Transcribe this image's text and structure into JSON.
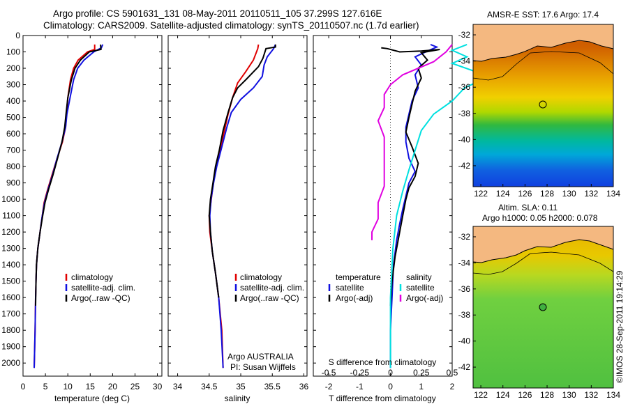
{
  "header": {
    "line1": "Argo profile: CS 5901631_131 08-May-2011 20110511_105 37.299S 127.616E",
    "line2": "Climatology: CARS2009. Satellite-adjusted climatology: synTS_20110507.nc (1.7d earlier)"
  },
  "colors": {
    "red": "#e00000",
    "blue": "#1010e0",
    "black": "#000000",
    "cyan": "#00e0e0",
    "magenta": "#e000e0"
  },
  "chart_data": [
    {
      "type": "line",
      "panel": "temperature",
      "xlabel": "temperature (deg C)",
      "ylabel": "",
      "xlim": [
        0,
        31
      ],
      "ylim": [
        2080,
        0
      ],
      "xticks": [
        "0",
        "5",
        "10",
        "15",
        "20",
        "25",
        "30"
      ],
      "yticks": [
        "0",
        "100",
        "200",
        "300",
        "400",
        "500",
        "600",
        "700",
        "800",
        "900",
        "1000",
        "1100",
        "1200",
        "1300",
        "1400",
        "1500",
        "1600",
        "1700",
        "1800",
        "1900",
        "2000"
      ],
      "legend": [
        "climatology",
        "satellite-adj. clim.",
        "Argo(..raw -QC)"
      ],
      "series": [
        {
          "name": "climatology",
          "color": "#e00000",
          "points": [
            [
              16.0,
              55
            ],
            [
              16.0,
              85
            ],
            [
              14.4,
              100
            ],
            [
              12.3,
              150
            ],
            [
              11.3,
              200
            ],
            [
              10.6,
              270
            ],
            [
              10.0,
              380
            ],
            [
              9.7,
              480
            ],
            [
              9.5,
              560
            ],
            [
              8.8,
              650
            ],
            [
              7.5,
              760
            ],
            [
              6.5,
              850
            ],
            [
              5.5,
              940
            ],
            [
              4.7,
              1020
            ],
            [
              4.3,
              1100
            ],
            [
              3.8,
              1200
            ],
            [
              3.3,
              1300
            ],
            [
              3.0,
              1400
            ],
            [
              2.9,
              1500
            ],
            [
              2.8,
              1600
            ],
            [
              2.7,
              1800
            ],
            [
              2.5,
              2030
            ]
          ]
        },
        {
          "name": "satellite-adj. clim.",
          "color": "#1010e0",
          "points": [
            [
              17.8,
              55
            ],
            [
              17.5,
              75
            ],
            [
              15.8,
              100
            ],
            [
              13.6,
              150
            ],
            [
              12.2,
              200
            ],
            [
              11.3,
              270
            ],
            [
              10.5,
              380
            ],
            [
              9.8,
              480
            ],
            [
              9.5,
              560
            ],
            [
              8.7,
              650
            ],
            [
              7.5,
              760
            ],
            [
              6.6,
              850
            ],
            [
              5.6,
              940
            ],
            [
              4.8,
              1020
            ],
            [
              4.3,
              1100
            ],
            [
              3.8,
              1200
            ],
            [
              3.3,
              1300
            ],
            [
              3.0,
              1400
            ],
            [
              2.9,
              1500
            ],
            [
              2.8,
              1600
            ],
            [
              2.7,
              1800
            ],
            [
              2.5,
              2030
            ]
          ]
        },
        {
          "name": "Argo(..raw -QC)",
          "color": "#000000",
          "points": [
            [
              17.3,
              55
            ],
            [
              17.4,
              85
            ],
            [
              14.8,
              100
            ],
            [
              12.8,
              150
            ],
            [
              11.6,
              200
            ],
            [
              10.8,
              270
            ],
            [
              10.0,
              380
            ],
            [
              9.6,
              480
            ],
            [
              9.3,
              560
            ],
            [
              8.7,
              650
            ],
            [
              7.6,
              760
            ],
            [
              6.7,
              850
            ],
            [
              5.7,
              940
            ],
            [
              4.9,
              1020
            ],
            [
              4.4,
              1100
            ],
            [
              3.8,
              1200
            ],
            [
              3.3,
              1300
            ],
            [
              3.0,
              1400
            ],
            [
              2.9,
              1500
            ],
            [
              2.8,
              1650
            ]
          ]
        }
      ]
    },
    {
      "type": "line",
      "panel": "salinity",
      "xlabel": "salinity",
      "ylabel": "",
      "xlim": [
        33.85,
        36.05
      ],
      "ylim": [
        2080,
        0
      ],
      "xticks": [
        "34",
        "34.5",
        "35",
        "35.5",
        "36"
      ],
      "legend": [
        "climatology",
        "satellite-adj. clim.",
        "Argo(..raw -QC)"
      ],
      "series": [
        {
          "name": "climatology",
          "color": "#e00000",
          "points": [
            [
              35.28,
              55
            ],
            [
              35.27,
              80
            ],
            [
              35.2,
              150
            ],
            [
              35.08,
              220
            ],
            [
              34.95,
              290
            ],
            [
              34.87,
              380
            ],
            [
              34.8,
              480
            ],
            [
              34.73,
              600
            ],
            [
              34.66,
              720
            ],
            [
              34.6,
              820
            ],
            [
              34.56,
              920
            ],
            [
              34.53,
              1010
            ],
            [
              34.5,
              1100
            ],
            [
              34.51,
              1200
            ],
            [
              34.55,
              1320
            ],
            [
              34.6,
              1450
            ],
            [
              34.65,
              1600
            ],
            [
              34.7,
              1800
            ],
            [
              34.72,
              2030
            ]
          ]
        },
        {
          "name": "satellite-adj. clim.",
          "color": "#1010e0",
          "points": [
            [
              35.55,
              55
            ],
            [
              35.52,
              80
            ],
            [
              35.42,
              130
            ],
            [
              35.37,
              180
            ],
            [
              35.34,
              250
            ],
            [
              35.2,
              320
            ],
            [
              35.0,
              390
            ],
            [
              34.85,
              470
            ],
            [
              34.78,
              560
            ],
            [
              34.7,
              680
            ],
            [
              34.62,
              800
            ],
            [
              34.57,
              900
            ],
            [
              34.53,
              1000
            ],
            [
              34.51,
              1100
            ],
            [
              34.52,
              1200
            ],
            [
              34.55,
              1320
            ],
            [
              34.6,
              1450
            ],
            [
              34.65,
              1600
            ],
            [
              34.69,
              1800
            ],
            [
              34.72,
              2030
            ]
          ]
        },
        {
          "name": "Argo(..raw -QC)",
          "color": "#000000",
          "points": [
            [
              35.55,
              55
            ],
            [
              35.55,
              70
            ],
            [
              35.4,
              80
            ],
            [
              35.35,
              140
            ],
            [
              35.28,
              190
            ],
            [
              35.08,
              270
            ],
            [
              34.95,
              320
            ],
            [
              34.87,
              380
            ],
            [
              34.8,
              470
            ],
            [
              34.72,
              580
            ],
            [
              34.66,
              700
            ],
            [
              34.6,
              800
            ],
            [
              34.56,
              900
            ],
            [
              34.52,
              1000
            ],
            [
              34.5,
              1100
            ],
            [
              34.52,
              1200
            ],
            [
              34.55,
              1320
            ],
            [
              34.6,
              1450
            ],
            [
              34.65,
              1600
            ]
          ]
        }
      ]
    },
    {
      "type": "line",
      "panel": "difference",
      "xlabel": "T difference from climatology",
      "xlabel_top": "S difference from climatology",
      "xlim": [
        -2.5,
        2.0
      ],
      "ylim": [
        2080,
        0
      ],
      "xticks": [
        "-2",
        "-1",
        "0",
        "1",
        "2"
      ],
      "xticks_top": [
        "-0.5",
        "-0.25",
        "0",
        "0.25",
        "0.5"
      ],
      "legend_left_title": "temperature",
      "legend_right_title": "salinity",
      "legend": [
        "satellite",
        "Argo(-adj)",
        "satellite",
        "Argo(-adj)"
      ],
      "series": [
        {
          "name": "temperature satellite",
          "color": "#1010e0",
          "points": [
            [
              1.3,
              55
            ],
            [
              1.5,
              70
            ],
            [
              1.2,
              95
            ],
            [
              0.8,
              130
            ],
            [
              1.0,
              180
            ],
            [
              0.8,
              240
            ],
            [
              0.9,
              320
            ],
            [
              0.7,
              400
            ],
            [
              0.6,
              480
            ],
            [
              0.5,
              560
            ],
            [
              0.5,
              650
            ],
            [
              0.6,
              750
            ],
            [
              0.8,
              830
            ],
            [
              0.6,
              900
            ],
            [
              0.5,
              980
            ],
            [
              0.4,
              1060
            ],
            [
              0.3,
              1150
            ],
            [
              0.2,
              1250
            ],
            [
              0.1,
              1400
            ],
            [
              0.05,
              1600
            ],
            [
              0.0,
              1800
            ],
            [
              0.0,
              2030
            ]
          ]
        },
        {
          "name": "temperature Argo(-adj)",
          "color": "#000000",
          "points": [
            [
              -0.3,
              75
            ],
            [
              -0.1,
              80
            ],
            [
              0.3,
              100
            ],
            [
              1.0,
              95
            ],
            [
              1.6,
              85
            ],
            [
              1.0,
              105
            ],
            [
              1.2,
              150
            ],
            [
              0.9,
              200
            ],
            [
              1.0,
              260
            ],
            [
              0.8,
              340
            ],
            [
              0.7,
              420
            ],
            [
              0.6,
              500
            ],
            [
              0.5,
              590
            ],
            [
              0.7,
              680
            ],
            [
              0.9,
              780
            ],
            [
              0.8,
              860
            ],
            [
              0.6,
              930
            ],
            [
              0.5,
              1000
            ],
            [
              0.4,
              1100
            ],
            [
              0.3,
              1200
            ],
            [
              0.15,
              1350
            ],
            [
              0.05,
              1500
            ],
            [
              0.0,
              1650
            ]
          ]
        },
        {
          "name": "salinity satellite",
          "color": "#00e0e0",
          "points": [
            [
              0.62,
              55
            ],
            [
              0.5,
              90
            ],
            [
              0.62,
              130
            ],
            [
              0.5,
              170
            ],
            [
              0.8,
              250
            ],
            [
              0.6,
              320
            ],
            [
              0.5,
              400
            ],
            [
              0.35,
              480
            ],
            [
              0.25,
              580
            ],
            [
              0.2,
              700
            ],
            [
              0.15,
              820
            ],
            [
              0.1,
              950
            ],
            [
              0.05,
              1100
            ],
            [
              0.02,
              1300
            ],
            [
              0.0,
              1600
            ],
            [
              0.0,
              2030
            ]
          ]
        },
        {
          "name": "salinity Argo(-adj)",
          "color": "#e000e0",
          "points": [
            [
              0.5,
              55
            ],
            [
              0.45,
              100
            ],
            [
              0.35,
              160
            ],
            [
              0.1,
              240
            ],
            [
              0.0,
              300
            ],
            [
              -0.05,
              360
            ],
            [
              -0.05,
              440
            ],
            [
              -0.1,
              520
            ],
            [
              -0.05,
              620
            ],
            [
              -0.05,
              720
            ],
            [
              -0.05,
              820
            ],
            [
              -0.05,
              920
            ],
            [
              -0.1,
              1020
            ],
            [
              -0.1,
              1120
            ],
            [
              -0.15,
              1200
            ],
            [
              -0.15,
              1250
            ]
          ]
        }
      ]
    }
  ],
  "footer": {
    "argo": "Argo AUSTRALIA",
    "pi": "PI: Susan Wijffels"
  },
  "maps": {
    "top_title": "AMSR-E SST: 17.6 Argo: 17.4",
    "bottom_title1": "Altim. SLA: 0.11",
    "bottom_title2": "Argo h1000: 0.05 h2000: 0.078",
    "xticks": [
      "122",
      "124",
      "126",
      "128",
      "130",
      "132",
      "134"
    ],
    "yticks": [
      "-32",
      "-34",
      "-36",
      "-38",
      "-40",
      "-42"
    ],
    "argo_lon": 127.616,
    "argo_lat": -37.299
  },
  "credit": "©IMOS 28-Sep-2011 19:14:29"
}
